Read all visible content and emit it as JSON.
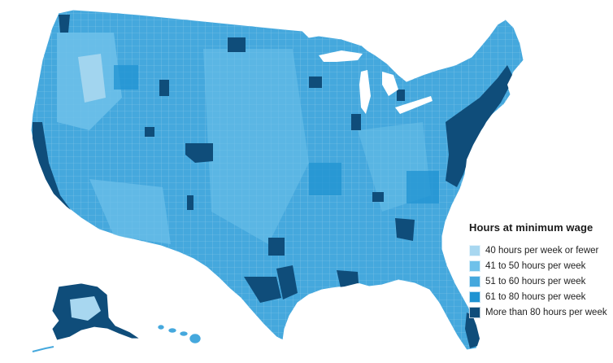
{
  "legend": {
    "title": "Hours at minimum wage",
    "items": [
      {
        "label": "40 hours per week or fewer",
        "color": "#a8d7f0"
      },
      {
        "label": "41 to 50 hours per week",
        "color": "#6ec1ea"
      },
      {
        "label": "51 to 60 hours per week",
        "color": "#45a8dd"
      },
      {
        "label": "61 to 80 hours per week",
        "color": "#1f93d2"
      },
      {
        "label": "More than 80 hours per week",
        "color": "#0f4d7a"
      }
    ]
  },
  "map": {
    "subject": "United States counties",
    "base_color": "#45a8dd",
    "border_color": "#7fc3e8"
  }
}
